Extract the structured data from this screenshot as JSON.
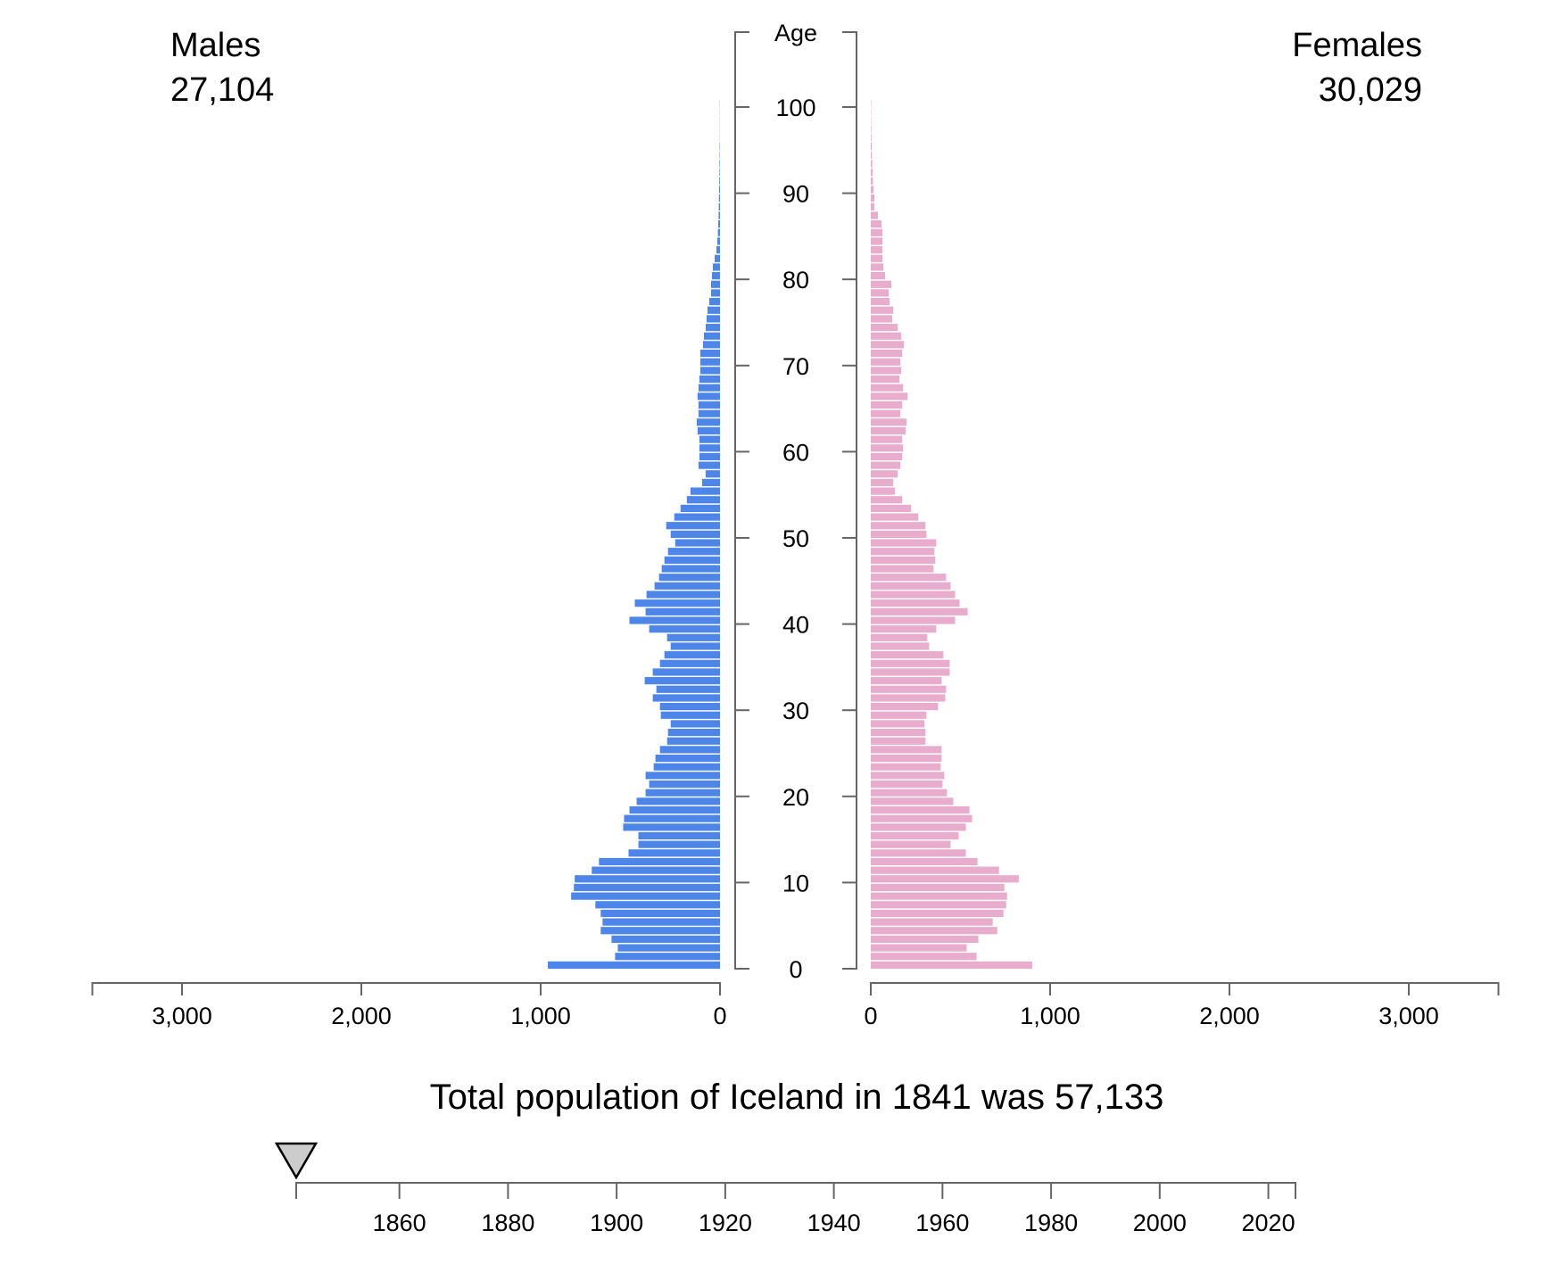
{
  "chart_data": {
    "type": "bar",
    "subtype": "population-pyramid",
    "year_selected": 1841,
    "males": {
      "label": "Males",
      "total": "27,104",
      "color": "#4d86e8"
    },
    "females": {
      "label": "Females",
      "total": "30,029",
      "color": "#e8adcd"
    },
    "age_axis_title": "Age",
    "age_ticks": [
      0,
      10,
      20,
      30,
      40,
      50,
      60,
      70,
      80,
      90,
      100
    ],
    "value_ticks": [
      0,
      1000,
      2000,
      3000
    ],
    "value_tick_labels": [
      "0",
      "1,000",
      "2,000",
      "3,000"
    ],
    "value_max": 3500,
    "total_text": "Total population of Iceland in 1841 was 57,133",
    "timeline": {
      "range": [
        1841,
        2025
      ],
      "ticks": [
        1860,
        1880,
        1900,
        1920,
        1940,
        1960,
        1980,
        2000,
        2020
      ],
      "selected": 1841
    },
    "ages": [
      0,
      1,
      2,
      3,
      4,
      5,
      6,
      7,
      8,
      9,
      10,
      11,
      12,
      13,
      14,
      15,
      16,
      17,
      18,
      19,
      20,
      21,
      22,
      23,
      24,
      25,
      26,
      27,
      28,
      29,
      30,
      31,
      32,
      33,
      34,
      35,
      36,
      37,
      38,
      39,
      40,
      41,
      42,
      43,
      44,
      45,
      46,
      47,
      48,
      49,
      50,
      51,
      52,
      53,
      54,
      55,
      56,
      57,
      58,
      59,
      60,
      61,
      62,
      63,
      64,
      65,
      66,
      67,
      68,
      69,
      70,
      71,
      72,
      73,
      74,
      75,
      76,
      77,
      78,
      79,
      80,
      81,
      82,
      83,
      84,
      85,
      86,
      87,
      88,
      89,
      90,
      91,
      92,
      93,
      94,
      95,
      96,
      97,
      98,
      99,
      100
    ],
    "male_values": [
      960,
      585,
      570,
      605,
      665,
      655,
      665,
      695,
      830,
      815,
      810,
      715,
      675,
      510,
      455,
      455,
      540,
      535,
      505,
      465,
      415,
      395,
      415,
      370,
      360,
      335,
      295,
      290,
      275,
      330,
      335,
      375,
      355,
      420,
      375,
      335,
      310,
      275,
      295,
      395,
      505,
      415,
      475,
      410,
      365,
      340,
      325,
      310,
      290,
      250,
      275,
      300,
      255,
      220,
      185,
      165,
      100,
      80,
      120,
      115,
      115,
      115,
      125,
      130,
      120,
      120,
      125,
      120,
      115,
      110,
      110,
      110,
      95,
      90,
      80,
      75,
      70,
      60,
      50,
      50,
      45,
      40,
      30,
      20,
      15,
      12,
      10,
      8,
      7,
      6,
      5,
      4,
      3,
      3,
      2,
      2,
      1,
      1,
      1,
      1,
      1
    ],
    "female_values": [
      900,
      590,
      535,
      600,
      705,
      680,
      740,
      755,
      760,
      745,
      825,
      715,
      595,
      530,
      445,
      490,
      530,
      565,
      550,
      460,
      425,
      400,
      410,
      390,
      395,
      395,
      305,
      305,
      300,
      310,
      375,
      415,
      420,
      395,
      440,
      440,
      405,
      325,
      315,
      365,
      470,
      540,
      495,
      470,
      445,
      420,
      350,
      360,
      355,
      365,
      310,
      305,
      265,
      225,
      175,
      135,
      125,
      150,
      165,
      175,
      180,
      175,
      195,
      200,
      165,
      175,
      205,
      180,
      160,
      170,
      165,
      175,
      185,
      170,
      150,
      120,
      125,
      105,
      100,
      115,
      80,
      70,
      65,
      65,
      65,
      65,
      60,
      40,
      20,
      20,
      15,
      12,
      10,
      8,
      6,
      5,
      4,
      3,
      2,
      2,
      2
    ]
  }
}
